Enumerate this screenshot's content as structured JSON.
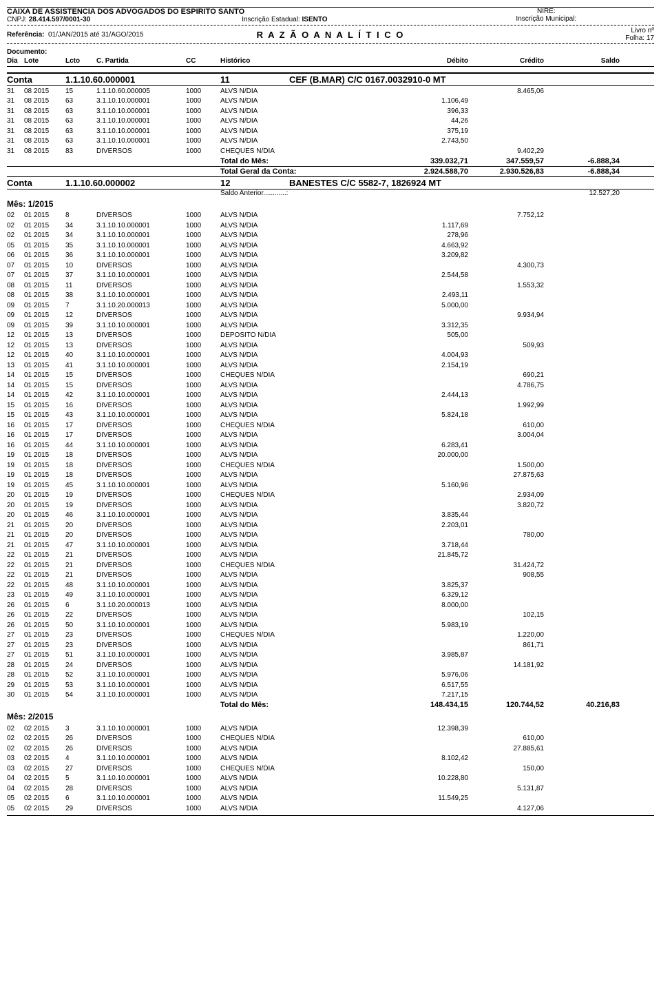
{
  "header": {
    "org": "CAIXA DE ASSISTENCIA DOS ADVOGADOS DO ESPIRITO SANTO",
    "cnpj_label": "CNPJ:",
    "cnpj": "28.414.597/0001-30",
    "insc_est_label": "Inscrição Estadual:",
    "insc_est": "ISENTO",
    "nire_label": "NIRE:",
    "insc_mun_label": "Inscrição Municipal:",
    "title": "R A Z Ã O   A N A L Í T I C O",
    "livro_label": "Livro nº",
    "folha_label": "Folha:",
    "folha": "17",
    "ref_label": "Referência:",
    "ref": "01/JAN/2015 até 31/AGO/2015",
    "doc_label": "Documento:"
  },
  "cols": {
    "dia": "Dia",
    "lote": "Lote",
    "lcto": "Lcto",
    "partida": "C. Partida",
    "cc": "CC",
    "hist": "Histórico",
    "deb": "Débito",
    "cred": "Crédito",
    "saldo": "Saldo"
  },
  "conta1": {
    "label": "Conta",
    "num": "1.1.10.60.000001",
    "cc": "11",
    "desc": "CEF (B.MAR) C/C 0167.0032910-0 MT",
    "rows": [
      {
        "dia": "31",
        "lote": "08 2015",
        "lcto": "15",
        "partida": "1.1.10.60.000005",
        "cc": "1000",
        "hist": "ALVS N/DIA",
        "deb": "",
        "cred": "8.465,06"
      },
      {
        "dia": "31",
        "lote": "08 2015",
        "lcto": "63",
        "partida": "3.1.10.10.000001",
        "cc": "1000",
        "hist": "ALVS N/DIA",
        "deb": "1.106,49",
        "cred": ""
      },
      {
        "dia": "31",
        "lote": "08 2015",
        "lcto": "63",
        "partida": "3.1.10.10.000001",
        "cc": "1000",
        "hist": "ALVS N/DIA",
        "deb": "396,33",
        "cred": ""
      },
      {
        "dia": "31",
        "lote": "08 2015",
        "lcto": "63",
        "partida": "3.1.10.10.000001",
        "cc": "1000",
        "hist": "ALVS N/DIA",
        "deb": "44,26",
        "cred": ""
      },
      {
        "dia": "31",
        "lote": "08 2015",
        "lcto": "63",
        "partida": "3.1.10.10.000001",
        "cc": "1000",
        "hist": "ALVS N/DIA",
        "deb": "375,19",
        "cred": ""
      },
      {
        "dia": "31",
        "lote": "08 2015",
        "lcto": "63",
        "partida": "3.1.10.10.000001",
        "cc": "1000",
        "hist": "ALVS N/DIA",
        "deb": "2.743,50",
        "cred": ""
      },
      {
        "dia": "31",
        "lote": "08 2015",
        "lcto": "83",
        "partida": "DIVERSOS",
        "cc": "1000",
        "hist": "CHEQUES N/DIA",
        "deb": "",
        "cred": "9.402,29"
      }
    ],
    "total_mes": {
      "label": "Total do Mês:",
      "deb": "339.032,71",
      "cred": "347.559,57",
      "saldo": "-6.888,34"
    },
    "total_conta": {
      "label": "Total Geral da Conta:",
      "deb": "2.924.588,70",
      "cred": "2.930.526,83",
      "saldo": "-6.888,34"
    }
  },
  "conta2": {
    "label": "Conta",
    "num": "1.1.10.60.000002",
    "cc": "12",
    "desc": "BANESTES C/C 5582-7, 1826924 MT",
    "saldo_ant_label": "Saldo Anterior............:",
    "saldo_ant": "12.527,20",
    "mes1_label": "Mês:  1/2015",
    "mes1_rows": [
      {
        "dia": "02",
        "lote": "01 2015",
        "lcto": "8",
        "partida": "DIVERSOS",
        "cc": "1000",
        "hist": "ALVS N/DIA",
        "deb": "",
        "cred": "7.752,12"
      },
      {
        "dia": "02",
        "lote": "01 2015",
        "lcto": "34",
        "partida": "3.1.10.10.000001",
        "cc": "1000",
        "hist": "ALVS N/DIA",
        "deb": "1.117,69",
        "cred": ""
      },
      {
        "dia": "02",
        "lote": "01 2015",
        "lcto": "34",
        "partida": "3.1.10.10.000001",
        "cc": "1000",
        "hist": "ALVS N/DIA",
        "deb": "278,96",
        "cred": ""
      },
      {
        "dia": "05",
        "lote": "01 2015",
        "lcto": "35",
        "partida": "3.1.10.10.000001",
        "cc": "1000",
        "hist": "ALVS N/DIA",
        "deb": "4.663,92",
        "cred": ""
      },
      {
        "dia": "06",
        "lote": "01 2015",
        "lcto": "36",
        "partida": "3.1.10.10.000001",
        "cc": "1000",
        "hist": "ALVS N/DIA",
        "deb": "3.209,82",
        "cred": ""
      },
      {
        "dia": "07",
        "lote": "01 2015",
        "lcto": "10",
        "partida": "DIVERSOS",
        "cc": "1000",
        "hist": "ALVS N/DIA",
        "deb": "",
        "cred": "4.300,73"
      },
      {
        "dia": "07",
        "lote": "01 2015",
        "lcto": "37",
        "partida": "3.1.10.10.000001",
        "cc": "1000",
        "hist": "ALVS N/DIA",
        "deb": "2.544,58",
        "cred": ""
      },
      {
        "dia": "08",
        "lote": "01 2015",
        "lcto": "11",
        "partida": "DIVERSOS",
        "cc": "1000",
        "hist": "ALVS N/DIA",
        "deb": "",
        "cred": "1.553,32"
      },
      {
        "dia": "08",
        "lote": "01 2015",
        "lcto": "38",
        "partida": "3.1.10.10.000001",
        "cc": "1000",
        "hist": "ALVS N/DIA",
        "deb": "2.493,11",
        "cred": ""
      },
      {
        "dia": "09",
        "lote": "01 2015",
        "lcto": "7",
        "partida": "3.1.10.20.000013",
        "cc": "1000",
        "hist": "ALVS N/DIA",
        "deb": "5.000,00",
        "cred": ""
      },
      {
        "dia": "09",
        "lote": "01 2015",
        "lcto": "12",
        "partida": "DIVERSOS",
        "cc": "1000",
        "hist": "ALVS N/DIA",
        "deb": "",
        "cred": "9.934,94"
      },
      {
        "dia": "09",
        "lote": "01 2015",
        "lcto": "39",
        "partida": "3.1.10.10.000001",
        "cc": "1000",
        "hist": "ALVS N/DIA",
        "deb": "3.312,35",
        "cred": ""
      },
      {
        "dia": "12",
        "lote": "01 2015",
        "lcto": "13",
        "partida": "DIVERSOS",
        "cc": "1000",
        "hist": "DEPOSITO N/DIA",
        "deb": "505,00",
        "cred": ""
      },
      {
        "dia": "12",
        "lote": "01 2015",
        "lcto": "13",
        "partida": "DIVERSOS",
        "cc": "1000",
        "hist": "ALVS N/DIA",
        "deb": "",
        "cred": "509,93"
      },
      {
        "dia": "12",
        "lote": "01 2015",
        "lcto": "40",
        "partida": "3.1.10.10.000001",
        "cc": "1000",
        "hist": "ALVS N/DIA",
        "deb": "4.004,93",
        "cred": ""
      },
      {
        "dia": "13",
        "lote": "01 2015",
        "lcto": "41",
        "partida": "3.1.10.10.000001",
        "cc": "1000",
        "hist": "ALVS N/DIA",
        "deb": "2.154,19",
        "cred": ""
      },
      {
        "dia": "14",
        "lote": "01 2015",
        "lcto": "15",
        "partida": "DIVERSOS",
        "cc": "1000",
        "hist": "CHEQUES N/DIA",
        "deb": "",
        "cred": "690,21"
      },
      {
        "dia": "14",
        "lote": "01 2015",
        "lcto": "15",
        "partida": "DIVERSOS",
        "cc": "1000",
        "hist": "ALVS N/DIA",
        "deb": "",
        "cred": "4.786,75"
      },
      {
        "dia": "14",
        "lote": "01 2015",
        "lcto": "42",
        "partida": "3.1.10.10.000001",
        "cc": "1000",
        "hist": "ALVS N/DIA",
        "deb": "2.444,13",
        "cred": ""
      },
      {
        "dia": "15",
        "lote": "01 2015",
        "lcto": "16",
        "partida": "DIVERSOS",
        "cc": "1000",
        "hist": "ALVS N/DIA",
        "deb": "",
        "cred": "1.992,99"
      },
      {
        "dia": "15",
        "lote": "01 2015",
        "lcto": "43",
        "partida": "3.1.10.10.000001",
        "cc": "1000",
        "hist": "ALVS N/DIA",
        "deb": "5.824,18",
        "cred": ""
      },
      {
        "dia": "16",
        "lote": "01 2015",
        "lcto": "17",
        "partida": "DIVERSOS",
        "cc": "1000",
        "hist": "CHEQUES N/DIA",
        "deb": "",
        "cred": "610,00"
      },
      {
        "dia": "16",
        "lote": "01 2015",
        "lcto": "17",
        "partida": "DIVERSOS",
        "cc": "1000",
        "hist": "ALVS N/DIA",
        "deb": "",
        "cred": "3.004,04"
      },
      {
        "dia": "16",
        "lote": "01 2015",
        "lcto": "44",
        "partida": "3.1.10.10.000001",
        "cc": "1000",
        "hist": "ALVS N/DIA",
        "deb": "6.283,41",
        "cred": ""
      },
      {
        "dia": "19",
        "lote": "01 2015",
        "lcto": "18",
        "partida": "DIVERSOS",
        "cc": "1000",
        "hist": "ALVS N/DIA",
        "deb": "20.000,00",
        "cred": ""
      },
      {
        "dia": "19",
        "lote": "01 2015",
        "lcto": "18",
        "partida": "DIVERSOS",
        "cc": "1000",
        "hist": "CHEQUES N/DIA",
        "deb": "",
        "cred": "1.500,00"
      },
      {
        "dia": "19",
        "lote": "01 2015",
        "lcto": "18",
        "partida": "DIVERSOS",
        "cc": "1000",
        "hist": "ALVS N/DIA",
        "deb": "",
        "cred": "27.875,63"
      },
      {
        "dia": "19",
        "lote": "01 2015",
        "lcto": "45",
        "partida": "3.1.10.10.000001",
        "cc": "1000",
        "hist": "ALVS N/DIA",
        "deb": "5.160,96",
        "cred": ""
      },
      {
        "dia": "20",
        "lote": "01 2015",
        "lcto": "19",
        "partida": "DIVERSOS",
        "cc": "1000",
        "hist": "CHEQUES N/DIA",
        "deb": "",
        "cred": "2.934,09"
      },
      {
        "dia": "20",
        "lote": "01 2015",
        "lcto": "19",
        "partida": "DIVERSOS",
        "cc": "1000",
        "hist": "ALVS N/DIA",
        "deb": "",
        "cred": "3.820,72"
      },
      {
        "dia": "20",
        "lote": "01 2015",
        "lcto": "46",
        "partida": "3.1.10.10.000001",
        "cc": "1000",
        "hist": "ALVS N/DIA",
        "deb": "3.835,44",
        "cred": ""
      },
      {
        "dia": "21",
        "lote": "01 2015",
        "lcto": "20",
        "partida": "DIVERSOS",
        "cc": "1000",
        "hist": "ALVS N/DIA",
        "deb": "2.203,01",
        "cred": ""
      },
      {
        "dia": "21",
        "lote": "01 2015",
        "lcto": "20",
        "partida": "DIVERSOS",
        "cc": "1000",
        "hist": "ALVS N/DIA",
        "deb": "",
        "cred": "780,00"
      },
      {
        "dia": "21",
        "lote": "01 2015",
        "lcto": "47",
        "partida": "3.1.10.10.000001",
        "cc": "1000",
        "hist": "ALVS N/DIA",
        "deb": "3.718,44",
        "cred": ""
      },
      {
        "dia": "22",
        "lote": "01 2015",
        "lcto": "21",
        "partida": "DIVERSOS",
        "cc": "1000",
        "hist": "ALVS N/DIA",
        "deb": "21.845,72",
        "cred": ""
      },
      {
        "dia": "22",
        "lote": "01 2015",
        "lcto": "21",
        "partida": "DIVERSOS",
        "cc": "1000",
        "hist": "CHEQUES N/DIA",
        "deb": "",
        "cred": "31.424,72"
      },
      {
        "dia": "22",
        "lote": "01 2015",
        "lcto": "21",
        "partida": "DIVERSOS",
        "cc": "1000",
        "hist": "ALVS N/DIA",
        "deb": "",
        "cred": "908,55"
      },
      {
        "dia": "22",
        "lote": "01 2015",
        "lcto": "48",
        "partida": "3.1.10.10.000001",
        "cc": "1000",
        "hist": "ALVS N/DIA",
        "deb": "3.825,37",
        "cred": ""
      },
      {
        "dia": "23",
        "lote": "01 2015",
        "lcto": "49",
        "partida": "3.1.10.10.000001",
        "cc": "1000",
        "hist": "ALVS N/DIA",
        "deb": "6.329,12",
        "cred": ""
      },
      {
        "dia": "26",
        "lote": "01 2015",
        "lcto": "6",
        "partida": "3.1.10.20.000013",
        "cc": "1000",
        "hist": "ALVS N/DIA",
        "deb": "8.000,00",
        "cred": ""
      },
      {
        "dia": "26",
        "lote": "01 2015",
        "lcto": "22",
        "partida": "DIVERSOS",
        "cc": "1000",
        "hist": "ALVS N/DIA",
        "deb": "",
        "cred": "102,15"
      },
      {
        "dia": "26",
        "lote": "01 2015",
        "lcto": "50",
        "partida": "3.1.10.10.000001",
        "cc": "1000",
        "hist": "ALVS N/DIA",
        "deb": "5.983,19",
        "cred": ""
      },
      {
        "dia": "27",
        "lote": "01 2015",
        "lcto": "23",
        "partida": "DIVERSOS",
        "cc": "1000",
        "hist": "CHEQUES N/DIA",
        "deb": "",
        "cred": "1.220,00"
      },
      {
        "dia": "27",
        "lote": "01 2015",
        "lcto": "23",
        "partida": "DIVERSOS",
        "cc": "1000",
        "hist": "ALVS N/DIA",
        "deb": "",
        "cred": "861,71"
      },
      {
        "dia": "27",
        "lote": "01 2015",
        "lcto": "51",
        "partida": "3.1.10.10.000001",
        "cc": "1000",
        "hist": "ALVS N/DIA",
        "deb": "3.985,87",
        "cred": ""
      },
      {
        "dia": "28",
        "lote": "01 2015",
        "lcto": "24",
        "partida": "DIVERSOS",
        "cc": "1000",
        "hist": "ALVS N/DIA",
        "deb": "",
        "cred": "14.181,92"
      },
      {
        "dia": "28",
        "lote": "01 2015",
        "lcto": "52",
        "partida": "3.1.10.10.000001",
        "cc": "1000",
        "hist": "ALVS N/DIA",
        "deb": "5.976,06",
        "cred": ""
      },
      {
        "dia": "29",
        "lote": "01 2015",
        "lcto": "53",
        "partida": "3.1.10.10.000001",
        "cc": "1000",
        "hist": "ALVS N/DIA",
        "deb": "6.517,55",
        "cred": ""
      },
      {
        "dia": "30",
        "lote": "01 2015",
        "lcto": "54",
        "partida": "3.1.10.10.000001",
        "cc": "1000",
        "hist": "ALVS N/DIA",
        "deb": "7.217,15",
        "cred": ""
      }
    ],
    "mes1_total": {
      "label": "Total do Mês:",
      "deb": "148.434,15",
      "cred": "120.744,52",
      "saldo": "40.216,83"
    },
    "mes2_label": "Mês:  2/2015",
    "mes2_rows": [
      {
        "dia": "02",
        "lote": "02 2015",
        "lcto": "3",
        "partida": "3.1.10.10.000001",
        "cc": "1000",
        "hist": "ALVS N/DIA",
        "deb": "12.398,39",
        "cred": ""
      },
      {
        "dia": "02",
        "lote": "02 2015",
        "lcto": "26",
        "partida": "DIVERSOS",
        "cc": "1000",
        "hist": "CHEQUES N/DIA",
        "deb": "",
        "cred": "610,00"
      },
      {
        "dia": "02",
        "lote": "02 2015",
        "lcto": "26",
        "partida": "DIVERSOS",
        "cc": "1000",
        "hist": "ALVS N/DIA",
        "deb": "",
        "cred": "27.885,61"
      },
      {
        "dia": "03",
        "lote": "02 2015",
        "lcto": "4",
        "partida": "3.1.10.10.000001",
        "cc": "1000",
        "hist": "ALVS N/DIA",
        "deb": "8.102,42",
        "cred": ""
      },
      {
        "dia": "03",
        "lote": "02 2015",
        "lcto": "27",
        "partida": "DIVERSOS",
        "cc": "1000",
        "hist": "CHEQUES N/DIA",
        "deb": "",
        "cred": "150,00"
      },
      {
        "dia": "04",
        "lote": "02 2015",
        "lcto": "5",
        "partida": "3.1.10.10.000001",
        "cc": "1000",
        "hist": "ALVS N/DIA",
        "deb": "10.228,80",
        "cred": ""
      },
      {
        "dia": "04",
        "lote": "02 2015",
        "lcto": "28",
        "partida": "DIVERSOS",
        "cc": "1000",
        "hist": "ALVS N/DIA",
        "deb": "",
        "cred": "5.131,87"
      },
      {
        "dia": "05",
        "lote": "02 2015",
        "lcto": "6",
        "partida": "3.1.10.10.000001",
        "cc": "1000",
        "hist": "ALVS N/DIA",
        "deb": "11.549,25",
        "cred": ""
      },
      {
        "dia": "05",
        "lote": "02 2015",
        "lcto": "29",
        "partida": "DIVERSOS",
        "cc": "1000",
        "hist": "ALVS N/DIA",
        "deb": "",
        "cred": "4.127,06"
      }
    ]
  }
}
